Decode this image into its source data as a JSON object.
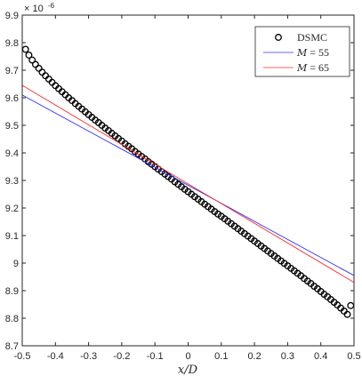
{
  "chart_data": {
    "type": "line",
    "title": "",
    "xlabel": "x/D",
    "ylabel": "",
    "xlim": [
      -0.5,
      0.5
    ],
    "ylim": [
      8.7,
      9.9
    ],
    "xticks": [
      -0.5,
      -0.4,
      -0.3,
      -0.2,
      -0.1,
      0,
      0.1,
      0.2,
      0.3,
      0.4,
      0.5
    ],
    "xtick_labels": [
      "-0.5",
      "-0.4",
      "-0.3",
      "-0.2",
      "-0.1",
      "0",
      "0.1",
      "0.2",
      "0.3",
      "0.4",
      "0.5"
    ],
    "yticks": [
      8.7,
      8.8,
      8.9,
      9.0,
      9.1,
      9.2,
      9.3,
      9.4,
      9.5,
      9.6,
      9.7,
      9.8,
      9.9
    ],
    "ytick_labels": [
      "8.7",
      "8.8",
      "8.9",
      "9",
      "9.1",
      "9.2",
      "9.3",
      "9.4",
      "9.5",
      "9.6",
      "9.7",
      "9.8",
      "9.9"
    ],
    "y_multiplier": {
      "base": "× 10",
      "exponent": "-6"
    },
    "grid": false,
    "legend_position": "top-right",
    "series": [
      {
        "name": "DSMC",
        "style": "markers",
        "marker": "circle",
        "color": "#000000",
        "x": [
          -0.49,
          -0.48,
          -0.47,
          -0.46,
          -0.45,
          -0.44,
          -0.43,
          -0.42,
          -0.41,
          -0.4,
          -0.39,
          -0.38,
          -0.37,
          -0.36,
          -0.35,
          -0.34,
          -0.33,
          -0.32,
          -0.31,
          -0.3,
          -0.29,
          -0.28,
          -0.27,
          -0.26,
          -0.25,
          -0.24,
          -0.23,
          -0.22,
          -0.21,
          -0.2,
          -0.19,
          -0.18,
          -0.17,
          -0.16,
          -0.15,
          -0.14,
          -0.13,
          -0.12,
          -0.11,
          -0.1,
          -0.09,
          -0.08,
          -0.07,
          -0.06,
          -0.05,
          -0.04,
          -0.03,
          -0.02,
          -0.01,
          0,
          0.01,
          0.02,
          0.03,
          0.04,
          0.05,
          0.06,
          0.07,
          0.08,
          0.09,
          0.1,
          0.11,
          0.12,
          0.13,
          0.14,
          0.15,
          0.16,
          0.17,
          0.18,
          0.19,
          0.2,
          0.21,
          0.22,
          0.23,
          0.24,
          0.25,
          0.26,
          0.27,
          0.28,
          0.29,
          0.3,
          0.31,
          0.32,
          0.33,
          0.34,
          0.35,
          0.36,
          0.37,
          0.38,
          0.39,
          0.4,
          0.41,
          0.42,
          0.43,
          0.44,
          0.45,
          0.46,
          0.47,
          0.48,
          0.49
        ],
        "y": [
          9.776,
          9.755,
          9.737,
          9.721,
          9.707,
          9.693,
          9.68,
          9.668,
          9.656,
          9.644,
          9.633,
          9.622,
          9.611,
          9.6,
          9.59,
          9.579,
          9.569,
          9.559,
          9.549,
          9.539,
          9.529,
          9.519,
          9.51,
          9.5,
          9.49,
          9.481,
          9.471,
          9.462,
          9.452,
          9.443,
          9.433,
          9.424,
          9.415,
          9.405,
          9.396,
          9.387,
          9.378,
          9.368,
          9.359,
          9.35,
          9.341,
          9.332,
          9.323,
          9.314,
          9.305,
          9.295,
          9.286,
          9.277,
          9.268,
          9.259,
          9.25,
          9.241,
          9.232,
          9.223,
          9.214,
          9.205,
          9.196,
          9.187,
          9.178,
          9.17,
          9.161,
          9.152,
          9.143,
          9.134,
          9.125,
          9.116,
          9.107,
          9.098,
          9.089,
          9.08,
          9.071,
          9.062,
          9.053,
          9.044,
          9.035,
          9.026,
          9.017,
          9.008,
          8.999,
          8.99,
          8.981,
          8.972,
          8.963,
          8.954,
          8.944,
          8.935,
          8.926,
          8.916,
          8.907,
          8.897,
          8.887,
          8.878,
          8.868,
          8.858,
          8.848,
          8.837,
          8.826,
          8.814,
          8.846
        ]
      },
      {
        "name": "M = 55",
        "name_var": "M",
        "name_rest": " = 55",
        "style": "line",
        "color": "#3333ff",
        "x": [
          -0.5,
          0.5
        ],
        "y": [
          9.61,
          8.955
        ]
      },
      {
        "name": "M = 65",
        "name_var": "M",
        "name_rest": " = 65",
        "style": "line",
        "color": "#ff2a2a",
        "x": [
          -0.5,
          0.5
        ],
        "y": [
          9.645,
          8.93
        ]
      }
    ]
  }
}
